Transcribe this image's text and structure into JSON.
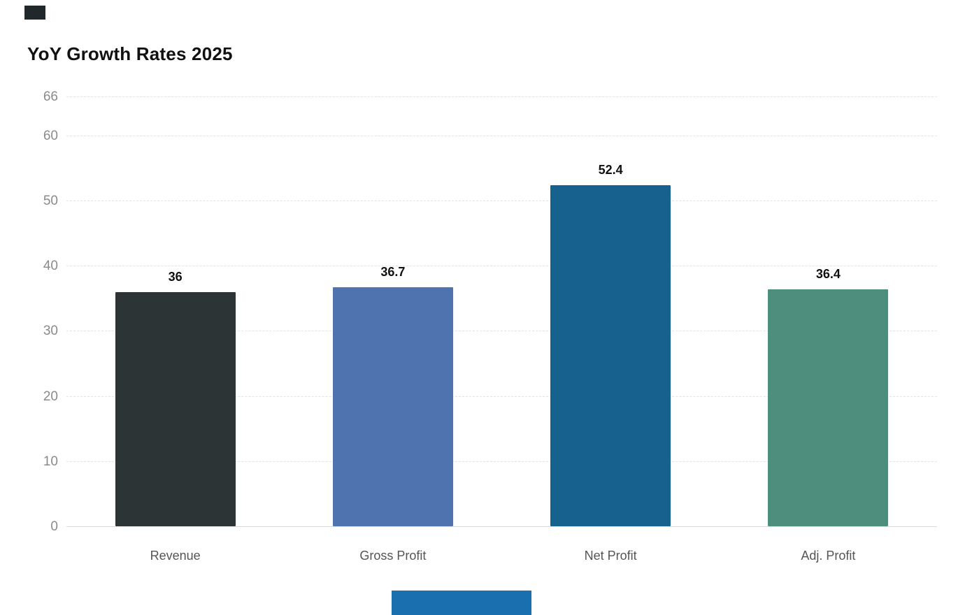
{
  "page": {
    "background_color": "#ffffff",
    "decor_top_square_color": "#20282b",
    "decor_bottom_bar_color": "#1a6fae"
  },
  "chart_data": {
    "type": "bar",
    "title": "YoY Growth Rates 2025",
    "categories": [
      "Revenue",
      "Gross Profit",
      "Net Profit",
      "Adj. Profit"
    ],
    "values": [
      36,
      36.7,
      52.4,
      36.4
    ],
    "value_labels": [
      "36",
      "36.7",
      "52.4",
      "36.4"
    ],
    "bar_colors": [
      "#2d3436",
      "#4e73ae",
      "#17618e",
      "#4e8e7c"
    ],
    "ylim": [
      0,
      66
    ],
    "yticks": [
      0,
      10,
      20,
      30,
      40,
      50,
      60,
      66
    ],
    "grid": "horizontal-dotted",
    "legend": "none",
    "xlabel": "",
    "ylabel": "",
    "title_color": "#111111",
    "tick_label_color": "#8a8a8a",
    "category_label_color": "#555555",
    "value_label_color": "#111111"
  }
}
